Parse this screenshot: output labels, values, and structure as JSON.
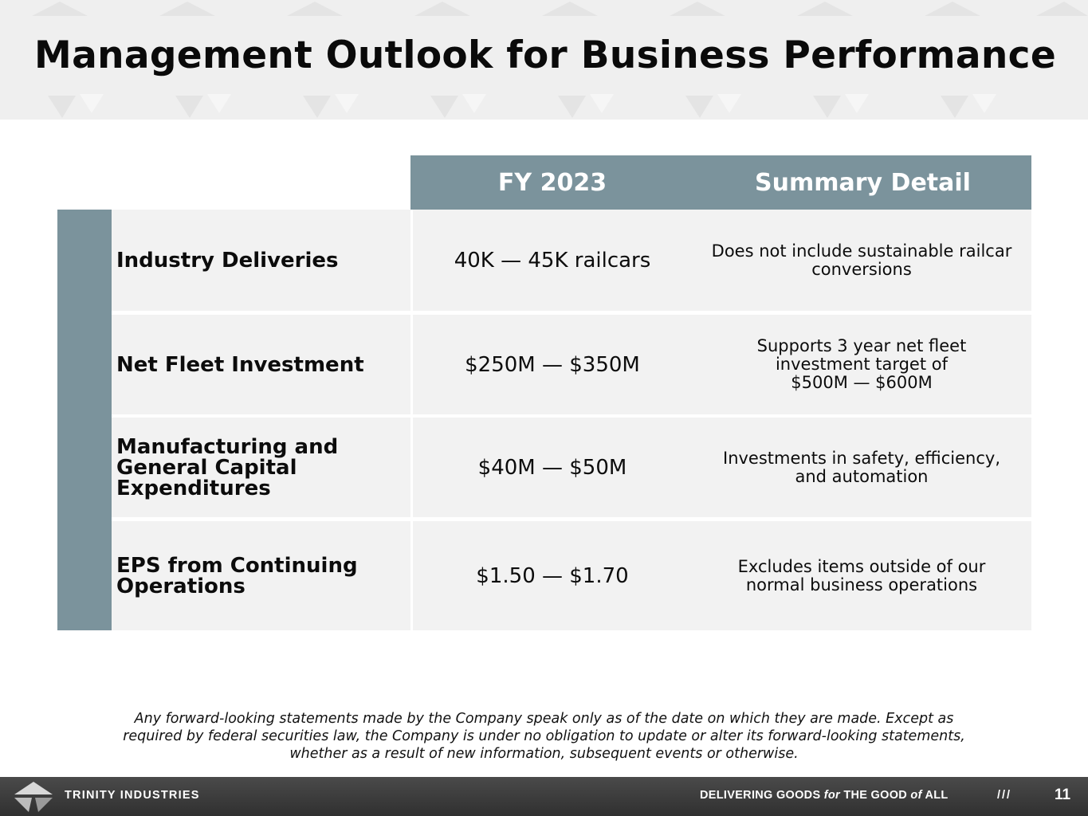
{
  "slide": {
    "title": "Management Outlook for Business Performance",
    "page_number": "11"
  },
  "table": {
    "headers": [
      "FY 2023",
      "Summary Detail"
    ],
    "rows": [
      {
        "metric": "Industry Deliveries",
        "fy2023": "40K — 45K railcars",
        "detail": [
          "Does not include sustainable railcar",
          "conversions"
        ]
      },
      {
        "metric": "Net Fleet Investment",
        "fy2023": "$250M — $350M",
        "detail": [
          "Supports 3 year net fleet",
          "investment target of",
          "$500M — $600M"
        ]
      },
      {
        "metric": "Manufacturing and General Capital Expenditures",
        "fy2023": "$40M — $50M",
        "detail": [
          "Investments in safety, efficiency,",
          "and automation"
        ]
      },
      {
        "metric": "EPS from Continuing Operations",
        "fy2023": "$1.50 — $1.70",
        "detail": [
          "Excludes items outside of our",
          "normal business operations"
        ]
      }
    ]
  },
  "disclaimer": [
    "Any forward-looking statements made by the Company speak only as of the date on which they are made. Except as",
    "required by federal securities law, the Company is under no obligation to update or alter its forward-looking statements,",
    "whether as a result of new information, subsequent events or otherwise."
  ],
  "footer": {
    "brand": "TRINITY INDUSTRIES",
    "tagline_1": "DELIVERING GOODS ",
    "tagline_for": "for",
    "tagline_2": " THE GOOD ",
    "tagline_of": "of",
    "tagline_3": " ALL",
    "separator": "///"
  },
  "colors": {
    "header_band": "#efefef",
    "table_header": "#7b939c",
    "cell_background": "#f2f2f2",
    "footer": "#3a3a3a"
  },
  "icons": [
    "trinity-logo-icon"
  ]
}
